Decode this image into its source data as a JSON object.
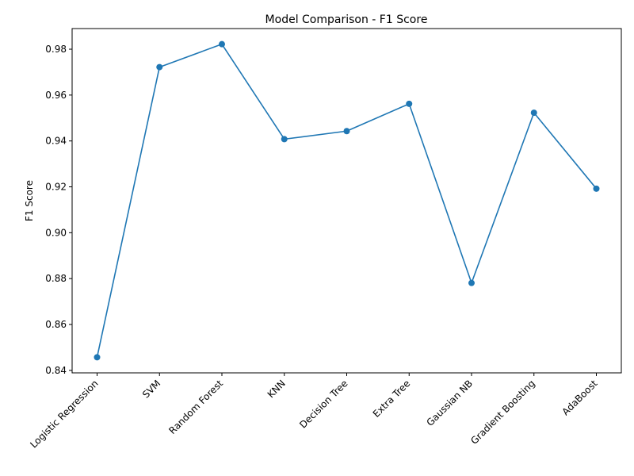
{
  "chart_data": {
    "type": "line",
    "title": "Model Comparison - F1 Score",
    "xlabel": "",
    "ylabel": "F1 Score",
    "categories": [
      "Logistic Regression",
      "SVM",
      "Random Forest",
      "KNN",
      "Decision Tree",
      "Extra Tree",
      "Gaussian NB",
      "Gradient Boosting",
      "AdaBoost"
    ],
    "values": [
      0.8457,
      0.9722,
      0.9822,
      0.9408,
      0.9443,
      0.9562,
      0.8781,
      0.9523,
      0.9192
    ],
    "ylim": [
      0.8389,
      0.989
    ],
    "yticks": [
      0.84,
      0.86,
      0.88,
      0.9,
      0.92,
      0.94,
      0.96,
      0.98
    ],
    "ytick_labels": [
      "0.84",
      "0.86",
      "0.88",
      "0.90",
      "0.92",
      "0.94",
      "0.96",
      "0.98"
    ],
    "grid": false,
    "marker": "circle",
    "line_color": "#1f77b4"
  }
}
